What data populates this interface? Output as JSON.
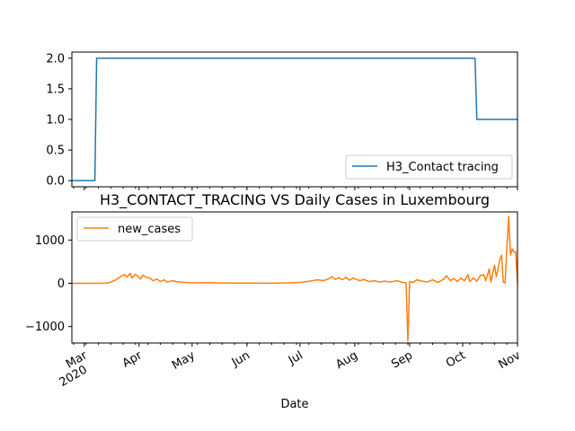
{
  "colors": {
    "series1": "#1f77b4",
    "series2": "#ff7f0e",
    "axis": "#000000",
    "background": "#ffffff"
  },
  "chart_data": [
    {
      "type": "line",
      "title": "",
      "xlabel": "",
      "ylabel": "",
      "x_range": [
        "2020-02-23",
        "2020-11-01"
      ],
      "ylim": [
        -0.1,
        2.1
      ],
      "y_ticks": [
        "0.0",
        "0.5",
        "1.0",
        "1.5",
        "2.0"
      ],
      "x_tick_labels": [],
      "legend": {
        "position": "lower right",
        "entries": [
          "H3_Contact tracing"
        ]
      },
      "grid": false,
      "series": [
        {
          "name": "H3_Contact tracing",
          "color": "#1f77b4",
          "points": [
            [
              "2020-02-23",
              0
            ],
            [
              "2020-03-07",
              0
            ],
            [
              "2020-03-08",
              2
            ],
            [
              "2020-10-08",
              2
            ],
            [
              "2020-10-09",
              1
            ],
            [
              "2020-11-01",
              1
            ]
          ]
        }
      ]
    },
    {
      "type": "line",
      "title": "H3_CONTACT_TRACING VS Daily Cases in Luxembourg",
      "xlabel": "Date",
      "ylabel": "",
      "x_range": [
        "2020-02-23",
        "2020-11-01"
      ],
      "ylim": [
        -1380,
        1650
      ],
      "y_ticks": [
        "1000",
        "0",
        "−1000"
      ],
      "x_tick_labels": [
        {
          "date": "2020-03-01",
          "label": "Mar",
          "sub": "2020"
        },
        {
          "date": "2020-04-01",
          "label": "Apr"
        },
        {
          "date": "2020-05-01",
          "label": "May"
        },
        {
          "date": "2020-06-01",
          "label": "Jun"
        },
        {
          "date": "2020-07-01",
          "label": "Jul"
        },
        {
          "date": "2020-08-01",
          "label": "Aug"
        },
        {
          "date": "2020-09-01",
          "label": "Sep"
        },
        {
          "date": "2020-10-01",
          "label": "Oct"
        },
        {
          "date": "2020-11-01",
          "label": "Nov"
        }
      ],
      "legend": {
        "position": "upper left",
        "entries": [
          "new_cases"
        ]
      },
      "grid": false,
      "series": [
        {
          "name": "new_cases",
          "color": "#ff7f0e",
          "points": [
            [
              "2020-02-23",
              0
            ],
            [
              "2020-03-10",
              0
            ],
            [
              "2020-03-14",
              5
            ],
            [
              "2020-03-16",
              30
            ],
            [
              "2020-03-18",
              60
            ],
            [
              "2020-03-20",
              110
            ],
            [
              "2020-03-22",
              170
            ],
            [
              "2020-03-24",
              200
            ],
            [
              "2020-03-25",
              140
            ],
            [
              "2020-03-27",
              230
            ],
            [
              "2020-03-28",
              120
            ],
            [
              "2020-03-30",
              210
            ],
            [
              "2020-03-31",
              170
            ],
            [
              "2020-04-02",
              100
            ],
            [
              "2020-04-03",
              190
            ],
            [
              "2020-04-05",
              140
            ],
            [
              "2020-04-07",
              120
            ],
            [
              "2020-04-09",
              60
            ],
            [
              "2020-04-11",
              100
            ],
            [
              "2020-04-13",
              40
            ],
            [
              "2020-04-15",
              80
            ],
            [
              "2020-04-17",
              30
            ],
            [
              "2020-04-20",
              60
            ],
            [
              "2020-04-23",
              30
            ],
            [
              "2020-04-27",
              20
            ],
            [
              "2020-05-02",
              10
            ],
            [
              "2020-05-10",
              15
            ],
            [
              "2020-05-20",
              5
            ],
            [
              "2020-06-01",
              5
            ],
            [
              "2020-06-15",
              3
            ],
            [
              "2020-06-25",
              10
            ],
            [
              "2020-07-01",
              20
            ],
            [
              "2020-07-05",
              40
            ],
            [
              "2020-07-08",
              60
            ],
            [
              "2020-07-11",
              80
            ],
            [
              "2020-07-14",
              60
            ],
            [
              "2020-07-17",
              100
            ],
            [
              "2020-07-19",
              150
            ],
            [
              "2020-07-21",
              90
            ],
            [
              "2020-07-23",
              130
            ],
            [
              "2020-07-25",
              80
            ],
            [
              "2020-07-27",
              140
            ],
            [
              "2020-07-29",
              70
            ],
            [
              "2020-07-31",
              120
            ],
            [
              "2020-08-02",
              90
            ],
            [
              "2020-08-04",
              60
            ],
            [
              "2020-08-06",
              90
            ],
            [
              "2020-08-09",
              40
            ],
            [
              "2020-08-12",
              60
            ],
            [
              "2020-08-15",
              30
            ],
            [
              "2020-08-18",
              50
            ],
            [
              "2020-08-21",
              30
            ],
            [
              "2020-08-25",
              60
            ],
            [
              "2020-08-28",
              20
            ],
            [
              "2020-08-30",
              10
            ],
            [
              "2020-08-31",
              -1340
            ],
            [
              "2020-09-01",
              40
            ],
            [
              "2020-09-03",
              20
            ],
            [
              "2020-09-05",
              80
            ],
            [
              "2020-09-08",
              50
            ],
            [
              "2020-09-11",
              30
            ],
            [
              "2020-09-14",
              80
            ],
            [
              "2020-09-17",
              20
            ],
            [
              "2020-09-20",
              90
            ],
            [
              "2020-09-22",
              170
            ],
            [
              "2020-09-24",
              60
            ],
            [
              "2020-09-26",
              110
            ],
            [
              "2020-09-28",
              40
            ],
            [
              "2020-09-30",
              120
            ],
            [
              "2020-10-02",
              60
            ],
            [
              "2020-10-04",
              200
            ],
            [
              "2020-10-05",
              40
            ],
            [
              "2020-10-07",
              120
            ],
            [
              "2020-10-09",
              50
            ],
            [
              "2020-10-11",
              180
            ],
            [
              "2020-10-13",
              200
            ],
            [
              "2020-10-14",
              60
            ],
            [
              "2020-10-16",
              330
            ],
            [
              "2020-10-17",
              30
            ],
            [
              "2020-10-19",
              420
            ],
            [
              "2020-10-20",
              150
            ],
            [
              "2020-10-22",
              550
            ],
            [
              "2020-10-23",
              650
            ],
            [
              "2020-10-24",
              20
            ],
            [
              "2020-10-25",
              10
            ],
            [
              "2020-10-26",
              840
            ],
            [
              "2020-10-27",
              1550
            ],
            [
              "2020-10-28",
              650
            ],
            [
              "2020-10-29",
              800
            ],
            [
              "2020-10-30",
              720
            ],
            [
              "2020-10-31",
              730
            ],
            [
              "2020-11-01",
              10
            ]
          ]
        }
      ]
    }
  ]
}
